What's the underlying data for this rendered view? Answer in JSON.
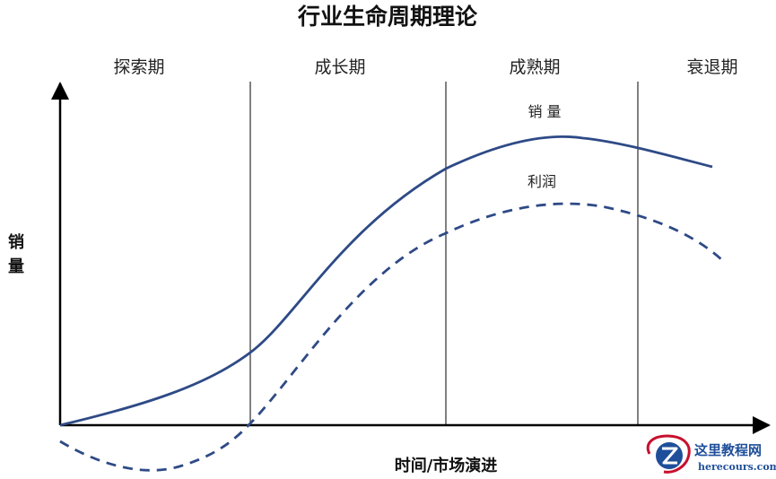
{
  "title": "行业生命周期理论",
  "stages": [
    "探索期",
    "成长期",
    "成熟期",
    "衰退期"
  ],
  "y_label_chars": [
    "销",
    "量"
  ],
  "x_label": "时间/市场演进",
  "curves": {
    "sales_label": "销 量",
    "profit_label": "利润"
  },
  "colors": {
    "curve": "#2e4a86",
    "axis": "#000000",
    "divider": "#000000",
    "logo_accent": "#c8102e",
    "logo_blue": "#1f4f9a"
  },
  "logo": {
    "main": "这里教程网",
    "sub": "herecours.com"
  }
}
